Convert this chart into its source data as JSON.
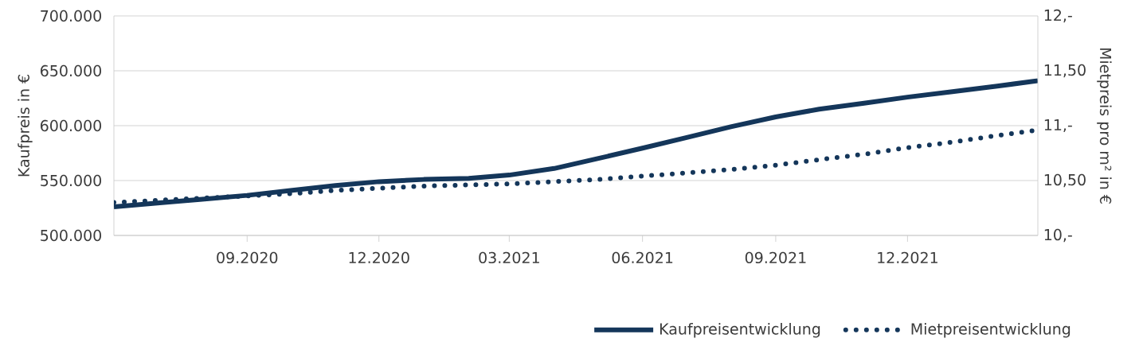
{
  "chart_data": {
    "type": "line",
    "ylabel": "Kaufpreis in €",
    "y2label": "Mietpreis pro m² in €",
    "x": [
      "2020-06",
      "2020-07",
      "2020-08",
      "2020-09",
      "2020-10",
      "2020-11",
      "2020-12",
      "2021-01",
      "2021-02",
      "2021-03",
      "2021-04",
      "2021-05",
      "2021-06",
      "2021-07",
      "2021-08",
      "2021-09",
      "2021-10",
      "2021-11",
      "2021-12",
      "2022-01",
      "2022-02",
      "2022-03"
    ],
    "series": [
      {
        "name": "Kaufpreisentwicklung",
        "color": "#14365a",
        "line_style": "solid",
        "values": [
          526000,
          529500,
          533000,
          536500,
          541000,
          545500,
          549000,
          551000,
          552000,
          555000,
          561000,
          570000,
          579500,
          589000,
          599000,
          608000,
          615000,
          620500,
          626000,
          631000,
          636000,
          641000
        ]
      },
      {
        "name": "Mietpreisentwicklung",
        "color": "#14365a",
        "line_style": "dotted",
        "axis": "y2",
        "values": [
          10.3,
          10.32,
          10.34,
          10.36,
          10.38,
          10.41,
          10.43,
          10.45,
          10.46,
          10.47,
          10.49,
          10.51,
          10.54,
          10.57,
          10.6,
          10.64,
          10.69,
          10.74,
          10.8,
          10.85,
          10.91,
          10.96
        ]
      }
    ],
    "xlim": [
      "2020-06",
      "2022-03"
    ],
    "xticks": [
      {
        "value": "2020-09",
        "label": "09.2020"
      },
      {
        "value": "2020-12",
        "label": "12.2020"
      },
      {
        "value": "2021-03",
        "label": "03.2021"
      },
      {
        "value": "2021-06",
        "label": "06.2021"
      },
      {
        "value": "2021-09",
        "label": "09.2021"
      },
      {
        "value": "2021-12",
        "label": "12.2021"
      }
    ],
    "ylim": [
      500000,
      700000
    ],
    "yticks": [
      {
        "value": 500000,
        "label": "500.000"
      },
      {
        "value": 550000,
        "label": "550.000"
      },
      {
        "value": 600000,
        "label": "600.000"
      },
      {
        "value": 650000,
        "label": "650.000"
      },
      {
        "value": 700000,
        "label": "700.000"
      }
    ],
    "y2lim": [
      10,
      12
    ],
    "y2ticks": [
      {
        "value": 10,
        "label": "10,-"
      },
      {
        "value": 10.5,
        "label": "10,50"
      },
      {
        "value": 11,
        "label": "11,-"
      },
      {
        "value": 11.5,
        "label": "11,50"
      },
      {
        "value": 12,
        "label": "12,-"
      }
    ],
    "grid": "y",
    "legend": "bottom",
    "marker": "none"
  }
}
